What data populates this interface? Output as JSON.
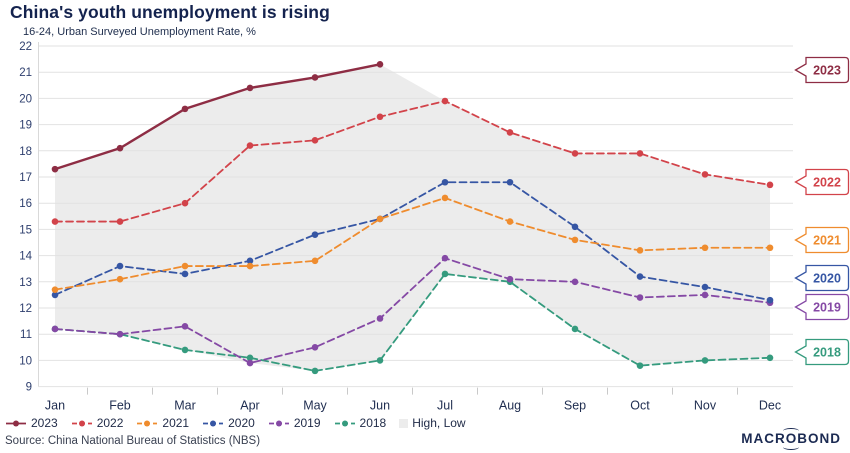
{
  "header": {
    "title": "China's youth unemployment is rising",
    "subtitle": "16-24, Urban Surveyed Unemployment Rate, %"
  },
  "chart_data": {
    "type": "line",
    "title": "China's youth unemployment is rising",
    "subtitle": "16-24, Urban Surveyed Unemployment Rate, %",
    "categories": [
      "Jan",
      "Feb",
      "Mar",
      "Apr",
      "May",
      "Jun",
      "Jul",
      "Aug",
      "Sep",
      "Oct",
      "Nov",
      "Dec"
    ],
    "ylim": [
      9,
      22
    ],
    "yticks": [
      9,
      10,
      11,
      12,
      13,
      14,
      15,
      16,
      17,
      18,
      19,
      20,
      21,
      22
    ],
    "grid": "horizontal",
    "legend_position": "bottom",
    "series": [
      {
        "name": "2018",
        "color": "#359b7e",
        "line_style": "dashed",
        "values": [
          11.2,
          11.0,
          10.4,
          10.1,
          9.6,
          10.0,
          13.3,
          13.0,
          11.2,
          9.8,
          10.0,
          10.1
        ]
      },
      {
        "name": "2019",
        "color": "#8549a5",
        "line_style": "dashed",
        "values": [
          11.2,
          11.0,
          11.3,
          9.9,
          10.5,
          11.6,
          13.9,
          13.1,
          13.0,
          12.4,
          12.5,
          12.2
        ]
      },
      {
        "name": "2020",
        "color": "#3656a4",
        "line_style": "dashed",
        "values": [
          12.5,
          13.6,
          13.3,
          13.8,
          14.8,
          15.4,
          16.8,
          16.8,
          15.1,
          13.2,
          12.8,
          12.3
        ]
      },
      {
        "name": "2021",
        "color": "#ef8c2e",
        "line_style": "dashed",
        "values": [
          12.7,
          13.1,
          13.6,
          13.6,
          13.8,
          15.4,
          16.2,
          15.3,
          14.6,
          14.2,
          14.3,
          14.3
        ]
      },
      {
        "name": "2022",
        "color": "#d2434a",
        "line_style": "dashed",
        "values": [
          15.3,
          15.3,
          16.0,
          18.2,
          18.4,
          19.3,
          19.9,
          18.7,
          17.9,
          17.9,
          17.1,
          16.7
        ]
      },
      {
        "name": "2023",
        "color": "#8e2d44",
        "line_style": "solid",
        "values": [
          17.3,
          18.1,
          19.6,
          20.4,
          20.8,
          21.3,
          null,
          null,
          null,
          null,
          null,
          null
        ]
      }
    ],
    "band": {
      "name": "High, Low",
      "color": "#ececec",
      "high": [
        17.3,
        18.1,
        19.6,
        20.4,
        20.8,
        21.3,
        19.9,
        18.7,
        17.9,
        17.9,
        17.1,
        16.7
      ],
      "low": [
        11.2,
        11.0,
        10.4,
        9.9,
        9.6,
        10.0,
        13.3,
        13.0,
        11.2,
        9.8,
        10.0,
        10.1
      ]
    },
    "right_labels": [
      "2023",
      "2022",
      "2021",
      "2020",
      "2019",
      "2018"
    ],
    "legend_order": [
      "2023",
      "2022",
      "2021",
      "2020",
      "2019",
      "2018"
    ]
  },
  "footer": {
    "source": "Source: China National Bureau of Statistics (NBS)",
    "logo": "MACROBOND"
  }
}
